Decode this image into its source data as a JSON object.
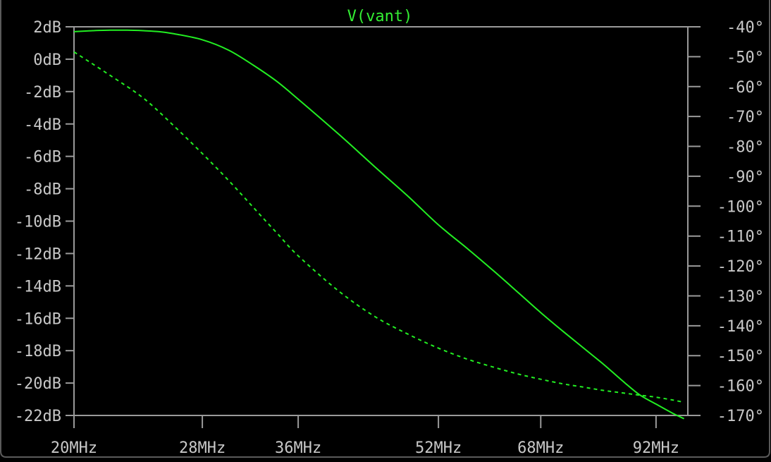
{
  "chart_data": {
    "type": "line",
    "title": "V(vant)",
    "x_scale": "log",
    "xlim": [
      20,
      100
    ],
    "x_ticks": [
      {
        "value": 20,
        "label": "20MHz"
      },
      {
        "value": 28,
        "label": "28MHz"
      },
      {
        "value": 36,
        "label": "36MHz"
      },
      {
        "value": 52,
        "label": "52MHz"
      },
      {
        "value": 68,
        "label": "68MHz"
      },
      {
        "value": 92,
        "label": "92MHz"
      }
    ],
    "y_left": {
      "unit": "dB",
      "lim": [
        -22,
        2
      ],
      "ticks": [
        {
          "value": 2,
          "label": "2dB"
        },
        {
          "value": 0,
          "label": "0dB"
        },
        {
          "value": -2,
          "label": "-2dB"
        },
        {
          "value": -4,
          "label": "-4dB"
        },
        {
          "value": -6,
          "label": "-6dB"
        },
        {
          "value": -8,
          "label": "-8dB"
        },
        {
          "value": -10,
          "label": "-10dB"
        },
        {
          "value": -12,
          "label": "-12dB"
        },
        {
          "value": -14,
          "label": "-14dB"
        },
        {
          "value": -16,
          "label": "-16dB"
        },
        {
          "value": -18,
          "label": "-18dB"
        },
        {
          "value": -20,
          "label": "-20dB"
        },
        {
          "value": -22,
          "label": "-22dB"
        }
      ]
    },
    "y_right": {
      "unit": "degrees",
      "lim": [
        -170,
        -40
      ],
      "ticks": [
        {
          "value": -40,
          "label": "-40°"
        },
        {
          "value": -50,
          "label": "-50°"
        },
        {
          "value": -60,
          "label": "-60°"
        },
        {
          "value": -70,
          "label": "-70°"
        },
        {
          "value": -80,
          "label": "-80°"
        },
        {
          "value": -90,
          "label": "-90°"
        },
        {
          "value": -100,
          "label": "-100°"
        },
        {
          "value": -110,
          "label": "-110°"
        },
        {
          "value": -120,
          "label": "-120°"
        },
        {
          "value": -130,
          "label": "-130°"
        },
        {
          "value": -140,
          "label": "-140°"
        },
        {
          "value": -150,
          "label": "-150°"
        },
        {
          "value": -160,
          "label": "-160°"
        },
        {
          "value": -170,
          "label": "-170°"
        }
      ]
    },
    "grid": false,
    "series": [
      {
        "axis": "left",
        "style": "solid",
        "color": "#22ee22",
        "x": [
          20,
          21,
          22,
          23,
          24,
          25,
          26,
          28,
          30,
          32,
          34,
          36,
          40,
          44,
          48,
          52,
          56,
          60,
          64,
          68,
          72,
          76,
          80,
          84,
          88,
          92,
          96,
          99
        ],
        "y": [
          1.7,
          1.76,
          1.79,
          1.79,
          1.76,
          1.7,
          1.57,
          1.2,
          0.56,
          -0.37,
          -1.35,
          -2.47,
          -4.61,
          -6.64,
          -8.46,
          -10.23,
          -11.66,
          -13.04,
          -14.38,
          -15.65,
          -16.78,
          -17.82,
          -18.8,
          -19.8,
          -20.7,
          -21.3,
          -21.85,
          -22.2
        ]
      },
      {
        "axis": "right",
        "style": "dashed",
        "color": "#22ee22",
        "x": [
          20,
          22,
          24,
          26,
          28,
          30,
          32,
          34,
          36,
          40,
          44,
          48,
          52,
          56,
          60,
          64,
          68,
          72,
          76,
          80,
          84,
          88,
          92,
          96,
          99
        ],
        "y": [
          -48.4,
          -56.3,
          -63.9,
          -73.2,
          -82.4,
          -91.4,
          -100.4,
          -108.8,
          -116.6,
          -128.3,
          -136.9,
          -142.8,
          -147.5,
          -151.1,
          -153.8,
          -156.1,
          -157.9,
          -159.4,
          -160.5,
          -161.6,
          -162.4,
          -163.2,
          -163.9,
          -164.8,
          -165.6
        ]
      }
    ]
  }
}
